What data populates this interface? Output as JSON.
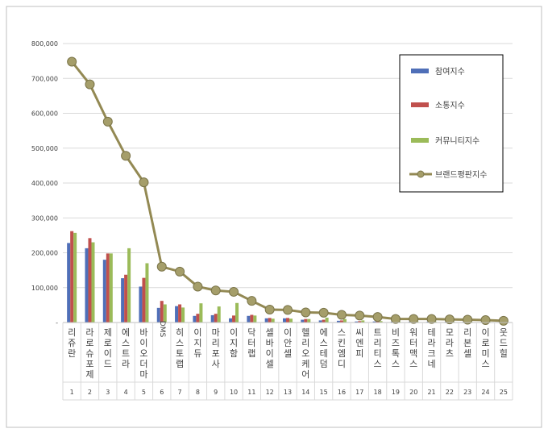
{
  "chart_data": {
    "type": "bar",
    "categories": [
      "리쥬란",
      "라로슈포제",
      "제로이드",
      "에스트라",
      "바이오더마",
      "DMS",
      "히스토랩",
      "이지듀",
      "마리포사",
      "이지함",
      "닥터랩",
      "셀바이셀",
      "이안셀",
      "헬리오케어",
      "에스테덤",
      "스킨엠디",
      "씨엔피",
      "트리티스",
      "비즈톡스",
      "워터맥스",
      "테라크네",
      "모라츠",
      "리본셀",
      "이로미스",
      "웃드힐"
    ],
    "ranks": [
      "1",
      "2",
      "3",
      "4",
      "5",
      "6",
      "7",
      "8",
      "9",
      "10",
      "11",
      "12",
      "13",
      "14",
      "15",
      "16",
      "17",
      "18",
      "19",
      "20",
      "21",
      "22",
      "23",
      "24",
      "25"
    ],
    "ylim": [
      0,
      800000
    ],
    "yticks": [
      0,
      100000,
      200000,
      300000,
      400000,
      500000,
      600000,
      700000,
      800000
    ],
    "ytick_labels": [
      "-",
      "100,000",
      "200,000",
      "300,000",
      "400,000",
      "500,000",
      "600,000",
      "700,000",
      "800,000"
    ],
    "grid": true,
    "legend_position": "right",
    "series": [
      {
        "name": "참여지수",
        "kind": "bar",
        "color": "#4F6FB8",
        "values": [
          228000,
          213000,
          180000,
          127000,
          103000,
          42000,
          47000,
          19000,
          21000,
          12000,
          19000,
          12000,
          12000,
          8000,
          6000,
          5000,
          3000,
          3000,
          2500,
          2500,
          2500,
          2000,
          2000,
          1500,
          1500
        ]
      },
      {
        "name": "소통지수",
        "kind": "bar",
        "color": "#C0504D",
        "values": [
          262000,
          242000,
          198000,
          137000,
          128000,
          62000,
          52000,
          25000,
          25000,
          20000,
          22000,
          13000,
          13000,
          10000,
          8000,
          6000,
          4000,
          3500,
          3000,
          3000,
          3000,
          2500,
          2500,
          2000,
          2000
        ]
      },
      {
        "name": "커뮤니티지수",
        "kind": "bar",
        "color": "#9BBB59",
        "values": [
          257000,
          230000,
          198000,
          213000,
          170000,
          52000,
          43000,
          55000,
          46000,
          56000,
          20000,
          11000,
          11000,
          10000,
          14000,
          10000,
          6000,
          4000,
          3500,
          3500,
          3000,
          3000,
          2500,
          2500,
          2500
        ]
      },
      {
        "name": "브랜드평판지수",
        "kind": "line",
        "color": "#938953",
        "values": [
          748000,
          683000,
          576000,
          478000,
          402000,
          160000,
          146000,
          103000,
          92000,
          88000,
          62000,
          37000,
          36000,
          29000,
          28000,
          22000,
          20000,
          16000,
          10000,
          10000,
          10000,
          9000,
          8000,
          7000,
          5000
        ]
      }
    ]
  }
}
